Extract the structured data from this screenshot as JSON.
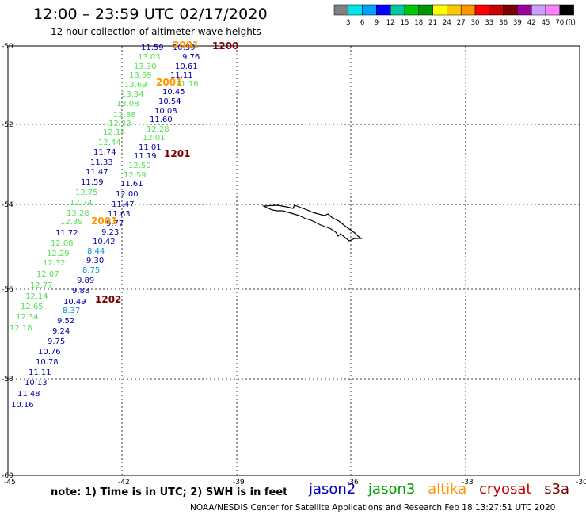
{
  "title": "12:00 – 23:59 UTC 02/17/2020",
  "subtitle": "12 hour collection of altimeter wave heights",
  "color_scale": {
    "colors": [
      "#808080",
      "#00e6e6",
      "#00a0ff",
      "#0000ff",
      "#00c8a0",
      "#00c800",
      "#009600",
      "#ffff00",
      "#ffc800",
      "#ff9600",
      "#ff0000",
      "#c80000",
      "#780000",
      "#a000a0",
      "#c8a0ff",
      "#ff80ff",
      "#000000"
    ],
    "labels": [
      "3",
      "6",
      "9",
      "12",
      "15",
      "18",
      "21",
      "24",
      "27",
      "30",
      "33",
      "36",
      "39",
      "42",
      "45",
      "70",
      "(ft)"
    ]
  },
  "axes": {
    "lat_ticks": [
      "-50",
      "-52",
      "-54",
      "-56",
      "-58",
      "-60"
    ],
    "lon_ticks": [
      "-45",
      "-42",
      "-39",
      "-36",
      "-33",
      "-30"
    ]
  },
  "pass_labels": [
    {
      "text": "1200",
      "satellite": "cryosat"
    },
    {
      "text": "2001",
      "satellite": "altika"
    },
    {
      "text": "2001",
      "satellite": "altika"
    },
    {
      "text": "1201",
      "satellite": "cryosat"
    },
    {
      "text": "2001",
      "satellite": "altika"
    },
    {
      "text": "1202",
      "satellite": "cryosat"
    }
  ],
  "track_values": [
    {
      "sat": "jason2",
      "text": "11.59"
    },
    {
      "sat": "jason2",
      "text": "10.59"
    },
    {
      "sat": "jason2",
      "text": "9.76"
    },
    {
      "sat": "jason2",
      "text": "10.61"
    },
    {
      "sat": "jason2",
      "text": "11.11"
    },
    {
      "sat": "jason3",
      "text": "11.16"
    },
    {
      "sat": "jason2",
      "text": "10.45"
    },
    {
      "sat": "jason2",
      "text": "10.54"
    },
    {
      "sat": "jason2",
      "text": "10.08"
    },
    {
      "sat": "jason2",
      "text": "11.60"
    },
    {
      "sat": "jason3",
      "text": "12.28"
    },
    {
      "sat": "jason3",
      "text": "12.01"
    },
    {
      "sat": "jason2",
      "text": "11.01"
    },
    {
      "sat": "jason2",
      "text": "11.19"
    },
    {
      "sat": "jason3",
      "text": "12.50"
    },
    {
      "sat": "jason3",
      "text": "12.59"
    },
    {
      "sat": "jason2",
      "text": "11.61"
    },
    {
      "sat": "jason2",
      "text": "12.00"
    },
    {
      "sat": "jason2",
      "text": "11.47"
    },
    {
      "sat": "jason2",
      "text": "11.63"
    },
    {
      "sat": "jason2",
      "text": "9.77"
    },
    {
      "sat": "jason2",
      "text": "9.23"
    },
    {
      "sat": "jason2",
      "text": "10.42"
    },
    {
      "sat": "jason2-light",
      "text": "8.44"
    },
    {
      "sat": "jason2",
      "text": "9.30"
    },
    {
      "sat": "jason2-light",
      "text": "8.75"
    },
    {
      "sat": "jason2",
      "text": "9.89"
    },
    {
      "sat": "jason2",
      "text": "9.88"
    },
    {
      "sat": "jason2",
      "text": "10.49"
    },
    {
      "sat": "jason2-light",
      "text": "8.37"
    },
    {
      "sat": "jason2",
      "text": "9.52"
    },
    {
      "sat": "jason2",
      "text": "9.24"
    },
    {
      "sat": "jason2",
      "text": "9.75"
    },
    {
      "sat": "jason2",
      "text": "10.76"
    },
    {
      "sat": "jason2",
      "text": "10.78"
    },
    {
      "sat": "jason2",
      "text": "11.11"
    },
    {
      "sat": "jason2",
      "text": "10.13"
    },
    {
      "sat": "jason2",
      "text": "11.48"
    },
    {
      "sat": "jason2",
      "text": "10.16"
    },
    {
      "sat": "jason3",
      "text": "13.03"
    },
    {
      "sat": "jason3",
      "text": "13.30"
    },
    {
      "sat": "jason3",
      "text": "13.69"
    },
    {
      "sat": "jason3",
      "text": "13.69"
    },
    {
      "sat": "jason3",
      "text": "13.34"
    },
    {
      "sat": "jason3",
      "text": "13.08"
    },
    {
      "sat": "jason3",
      "text": "12.88"
    },
    {
      "sat": "jason3",
      "text": "12.33"
    },
    {
      "sat": "jason3",
      "text": "12.14"
    },
    {
      "sat": "jason3",
      "text": "12.44"
    },
    {
      "sat": "jason2",
      "text": "11.74"
    },
    {
      "sat": "jason2",
      "text": "11.33"
    },
    {
      "sat": "jason2",
      "text": "11.47"
    },
    {
      "sat": "jason2",
      "text": "11.59"
    },
    {
      "sat": "jason3",
      "text": "12.75"
    },
    {
      "sat": "jason3",
      "text": "12.74"
    },
    {
      "sat": "jason3",
      "text": "13.28"
    },
    {
      "sat": "jason3",
      "text": "12.39"
    },
    {
      "sat": "jason2",
      "text": "11.72"
    },
    {
      "sat": "jason3",
      "text": "12.08"
    },
    {
      "sat": "jason3",
      "text": "12.29"
    },
    {
      "sat": "jason3",
      "text": "12.32"
    },
    {
      "sat": "jason3",
      "text": "12.07"
    },
    {
      "sat": "jason3",
      "text": "12.77"
    },
    {
      "sat": "jason3",
      "text": "12.14"
    },
    {
      "sat": "jason3",
      "text": "12.65"
    },
    {
      "sat": "jason3",
      "text": "12.34"
    },
    {
      "sat": "jason3",
      "text": "12.18"
    }
  ],
  "footer": {
    "note": "note:  1) Time is in UTC;  2) SWH is in feet",
    "satellites": [
      {
        "name": "jason2",
        "color": "#0000c8"
      },
      {
        "name": "jason3",
        "color": "#00a000"
      },
      {
        "name": "altika",
        "color": "#ff9600"
      },
      {
        "name": "cryosat",
        "color": "#c80000"
      },
      {
        "name": "s3a",
        "color": "#780000"
      }
    ],
    "credit": "NOAA/NESDIS Center for Satellite Applications and Research    Feb 18 13:27:51 UTC 2020"
  },
  "colors": {
    "jason2": "#0000aa",
    "jason2-light": "#0096dc",
    "jason3": "#55e055",
    "altika": "#ff9600",
    "cryosat": "#780000"
  }
}
